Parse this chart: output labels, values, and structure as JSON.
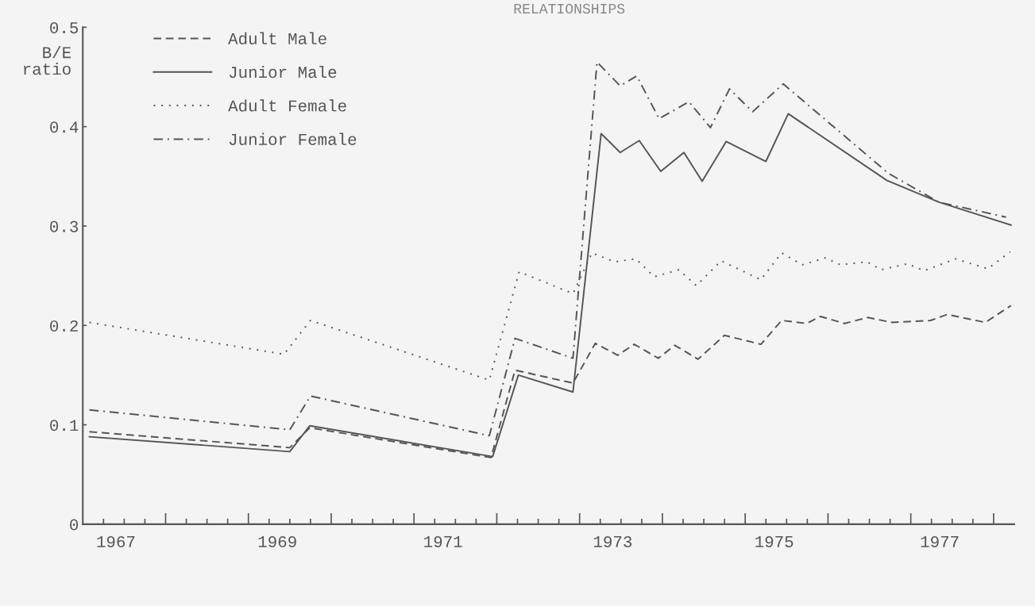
{
  "chart_data": {
    "type": "line",
    "title": "RELATIONSHIPS",
    "ylabel": "B/E\nratio",
    "xlim": [
      1967,
      1978.25
    ],
    "ylim": [
      0,
      0.5
    ],
    "yticks": [
      0,
      0.1,
      0.2,
      0.3,
      0.4,
      0.5
    ],
    "xticks": [
      {
        "value": 1967.4,
        "label": "1967"
      },
      {
        "value": 1969.35,
        "label": "1969"
      },
      {
        "value": 1971.35,
        "label": "1971"
      },
      {
        "value": 1973.4,
        "label": "1973"
      },
      {
        "value": 1975.35,
        "label": "1975"
      },
      {
        "value": 1977.35,
        "label": "1977"
      },
      {
        "value": 1967.25,
        "label": null
      },
      {
        "value": 1967.5,
        "label": null
      },
      {
        "value": 1967.75,
        "label": null
      },
      {
        "value": 1968,
        "label": null
      },
      {
        "value": 1968.25,
        "label": null
      },
      {
        "value": 1968.5,
        "label": null
      },
      {
        "value": 1968.75,
        "label": null
      },
      {
        "value": 1969,
        "label": null
      },
      {
        "value": 1969.25,
        "label": null
      },
      {
        "value": 1969.5,
        "label": null
      },
      {
        "value": 1969.75,
        "label": null
      },
      {
        "value": 1970,
        "label": null
      },
      {
        "value": 1970.25,
        "label": null
      },
      {
        "value": 1970.5,
        "label": null
      },
      {
        "value": 1970.75,
        "label": null
      },
      {
        "value": 1971,
        "label": null
      },
      {
        "value": 1971.25,
        "label": null
      },
      {
        "value": 1971.5,
        "label": null
      },
      {
        "value": 1971.75,
        "label": null
      },
      {
        "value": 1972,
        "label": null
      },
      {
        "value": 1972.25,
        "label": null
      },
      {
        "value": 1972.5,
        "label": null
      },
      {
        "value": 1972.75,
        "label": null
      },
      {
        "value": 1973,
        "label": null
      },
      {
        "value": 1973.25,
        "label": null
      },
      {
        "value": 1973.5,
        "label": null
      },
      {
        "value": 1973.75,
        "label": null
      },
      {
        "value": 1974,
        "label": null
      },
      {
        "value": 1974.25,
        "label": null
      },
      {
        "value": 1974.5,
        "label": null
      },
      {
        "value": 1974.75,
        "label": null
      },
      {
        "value": 1975,
        "label": null
      },
      {
        "value": 1975.25,
        "label": null
      },
      {
        "value": 1975.5,
        "label": null
      },
      {
        "value": 1975.75,
        "label": null
      },
      {
        "value": 1976,
        "label": null
      },
      {
        "value": 1976.25,
        "label": null
      },
      {
        "value": 1976.5,
        "label": null
      },
      {
        "value": 1976.75,
        "label": null
      },
      {
        "value": 1977,
        "label": null
      },
      {
        "value": 1977.25,
        "label": null
      },
      {
        "value": 1977.5,
        "label": null
      },
      {
        "value": 1977.75,
        "label": null
      },
      {
        "value": 1978,
        "label": null
      }
    ],
    "grid": false,
    "legend": "top left",
    "marker": "none",
    "series": [
      {
        "name": "Adult Male",
        "color": "#555555",
        "line_style": "dashed",
        "x": [
          1967.08,
          1969.5,
          1969.74,
          1971.93,
          1972.22,
          1972.92,
          1973.19,
          1973.46,
          1973.66,
          1973.95,
          1974.15,
          1974.43,
          1974.75,
          1975.19,
          1975.44,
          1975.74,
          1975.91,
          1976.2,
          1976.48,
          1976.77,
          1977.24,
          1977.44,
          1977.9,
          1978.21
        ],
        "values": [
          0.093,
          0.077,
          0.097,
          0.067,
          0.155,
          0.142,
          0.182,
          0.17,
          0.181,
          0.167,
          0.18,
          0.166,
          0.19,
          0.181,
          0.205,
          0.202,
          0.209,
          0.202,
          0.208,
          0.203,
          0.205,
          0.211,
          0.203,
          0.22
        ]
      },
      {
        "name": "Junior Male",
        "color": "#555555",
        "line_style": "solid",
        "x": [
          1967.08,
          1969.5,
          1969.74,
          1971.95,
          1972.26,
          1972.92,
          1973.26,
          1973.49,
          1973.72,
          1973.98,
          1974.26,
          1974.48,
          1974.77,
          1975.25,
          1975.52,
          1976.71,
          1977.34,
          1978.21
        ],
        "values": [
          0.088,
          0.073,
          0.099,
          0.068,
          0.15,
          0.133,
          0.393,
          0.374,
          0.386,
          0.355,
          0.374,
          0.345,
          0.385,
          0.365,
          0.413,
          0.346,
          0.324,
          0.301
        ]
      },
      {
        "name": "Adult Female",
        "color": "#555555",
        "line_style": "dotted",
        "x": [
          1967.08,
          1969.43,
          1969.75,
          1971.91,
          1972.27,
          1972.92,
          1973.15,
          1973.42,
          1973.68,
          1973.9,
          1974.2,
          1974.41,
          1974.71,
          1975.19,
          1975.44,
          1975.69,
          1975.97,
          1976.15,
          1976.47,
          1976.64,
          1976.96,
          1977.16,
          1977.54,
          1977.93,
          1978.2
        ],
        "values": [
          0.203,
          0.171,
          0.205,
          0.145,
          0.254,
          0.232,
          0.273,
          0.264,
          0.267,
          0.249,
          0.256,
          0.24,
          0.265,
          0.246,
          0.273,
          0.261,
          0.268,
          0.261,
          0.264,
          0.256,
          0.262,
          0.255,
          0.267,
          0.257,
          0.274
        ]
      },
      {
        "name": "Junior Female",
        "color": "#555555",
        "line_style": "dashdot",
        "x": [
          1967.08,
          1969.5,
          1969.75,
          1971.91,
          1972.22,
          1972.92,
          1973.21,
          1973.49,
          1973.69,
          1973.96,
          1974.32,
          1974.58,
          1974.81,
          1975.09,
          1975.46,
          1976.73,
          1977.34,
          1978.15
        ],
        "values": [
          0.115,
          0.095,
          0.129,
          0.089,
          0.187,
          0.167,
          0.465,
          0.441,
          0.451,
          0.408,
          0.425,
          0.399,
          0.438,
          0.415,
          0.443,
          0.353,
          0.324,
          0.309
        ]
      }
    ]
  }
}
